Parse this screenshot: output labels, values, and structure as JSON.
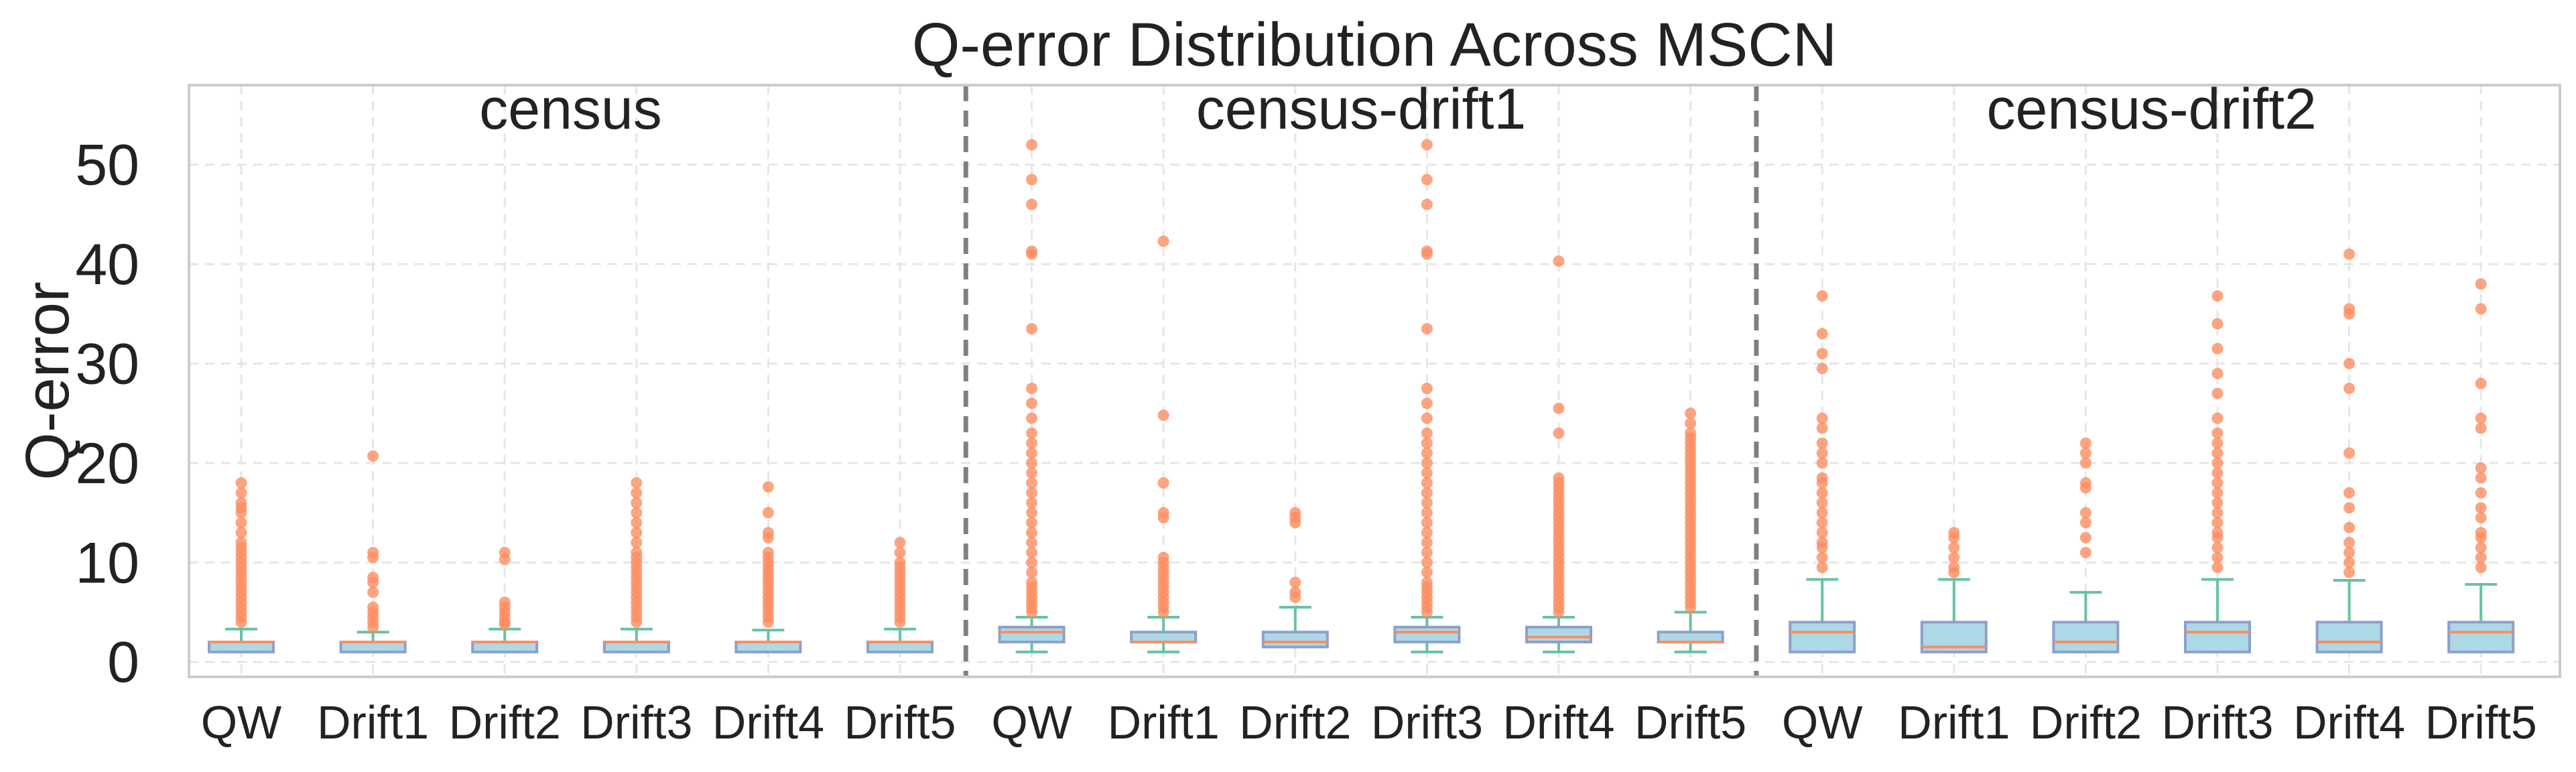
{
  "chart_data": {
    "type": "box",
    "title": "Q-error Distribution Across MSCN",
    "xlabel": "",
    "ylabel": "Q-error",
    "ylim": [
      -1.5,
      58
    ],
    "yticks": [
      0,
      10,
      20,
      30,
      40,
      50
    ],
    "grid": true,
    "categories": [
      "QW",
      "Drift1",
      "Drift2",
      "Drift3",
      "Drift4",
      "Drift5"
    ],
    "colors": {
      "box_fill": "#add8e6",
      "box_edge": "#8da0cb",
      "median": "#fc8d62",
      "whisker": "#66c2a5",
      "outlier": "#fc8d62",
      "separator": "#808080",
      "grid": "#e6e6e6"
    },
    "groups": [
      {
        "name": "census",
        "boxes": [
          {
            "label": "QW",
            "whislo": 1.0,
            "q1": 1.0,
            "med": 2.0,
            "q3": 2.0,
            "whishi": 3.3,
            "fliers": [
              4,
              4.5,
              5,
              5.5,
              6,
              6.5,
              7,
              7.5,
              8,
              8.5,
              9,
              9.5,
              10,
              10.5,
              11,
              11.5,
              12,
              13,
              14,
              15,
              15.5,
              16,
              17,
              18
            ]
          },
          {
            "label": "Drift1",
            "whislo": 1.0,
            "q1": 1.0,
            "med": 2.0,
            "q3": 2.0,
            "whishi": 3.0,
            "fliers": [
              3.5,
              4,
              4.5,
              5,
              5.5,
              7,
              8,
              8.5,
              10.5,
              11,
              20.7
            ]
          },
          {
            "label": "Drift2",
            "whislo": 1.0,
            "q1": 1.0,
            "med": 2.0,
            "q3": 2.0,
            "whishi": 3.3,
            "fliers": [
              3.8,
              4,
              4.5,
              5,
              5.5,
              6,
              10.3,
              11
            ]
          },
          {
            "label": "Drift3",
            "whislo": 1.0,
            "q1": 1.0,
            "med": 2.0,
            "q3": 2.0,
            "whishi": 3.3,
            "fliers": [
              4,
              4.5,
              5,
              5.5,
              6,
              6.5,
              7,
              7.5,
              8,
              8.5,
              9,
              9.5,
              10,
              10.5,
              11,
              12,
              13,
              14,
              15,
              16,
              17,
              18
            ]
          },
          {
            "label": "Drift4",
            "whislo": 1.0,
            "q1": 1.0,
            "med": 2.0,
            "q3": 2.0,
            "whishi": 3.2,
            "fliers": [
              4,
              4.5,
              5,
              5.5,
              6,
              6.5,
              7,
              7.5,
              8,
              8.5,
              9,
              9.5,
              10,
              10.5,
              11,
              12.5,
              13,
              15,
              17.6
            ]
          },
          {
            "label": "Drift5",
            "whislo": 1.0,
            "q1": 1.0,
            "med": 2.0,
            "q3": 2.0,
            "whishi": 3.3,
            "fliers": [
              4,
              4.5,
              5,
              5.5,
              6,
              6.5,
              7,
              7.5,
              8,
              8.5,
              9,
              9.5,
              10,
              11,
              12
            ]
          }
        ]
      },
      {
        "name": "census-drift1",
        "boxes": [
          {
            "label": "QW",
            "whislo": 1.0,
            "q1": 2.0,
            "med": 3.0,
            "q3": 3.5,
            "whishi": 4.5,
            "fliers": [
              5,
              5.5,
              6,
              6.5,
              7,
              7.5,
              8,
              9,
              10,
              11,
              12,
              13,
              14,
              15,
              16,
              17,
              18,
              19,
              20,
              21,
              22,
              23,
              24.5,
              26,
              27.5,
              33.5,
              41,
              41.3,
              46,
              48.5,
              52
            ]
          },
          {
            "label": "Drift1",
            "whislo": 1.0,
            "q1": 2.0,
            "med": 2.0,
            "q3": 3.0,
            "whishi": 4.5,
            "fliers": [
              5,
              5.5,
              6,
              6.5,
              7,
              7.5,
              8,
              8.5,
              9,
              9.5,
              10,
              10.5,
              14.5,
              15,
              18,
              24.8,
              42.3
            ]
          },
          {
            "label": "Drift2",
            "whislo": 1.5,
            "q1": 1.5,
            "med": 2.0,
            "q3": 3.0,
            "whishi": 5.5,
            "fliers": [
              6.5,
              7,
              8,
              14,
              14.5,
              15
            ]
          },
          {
            "label": "Drift3",
            "whislo": 1.0,
            "q1": 2.0,
            "med": 3.0,
            "q3": 3.5,
            "whishi": 4.5,
            "fliers": [
              5,
              5.5,
              6,
              6.5,
              7,
              7.5,
              8,
              9,
              10,
              11,
              12,
              13,
              14,
              15,
              16,
              17,
              18,
              19,
              20,
              21,
              22,
              23,
              24.5,
              26,
              27.5,
              33.5,
              41,
              41.3,
              46,
              48.5,
              52
            ]
          },
          {
            "label": "Drift4",
            "whislo": 1.0,
            "q1": 2.0,
            "med": 2.5,
            "q3": 3.5,
            "whishi": 4.5,
            "fliers": [
              5,
              5.5,
              6,
              6.5,
              7,
              7.5,
              8,
              8.5,
              9,
              9.5,
              10,
              10.5,
              11,
              11.5,
              12,
              12.5,
              13,
              13.5,
              14,
              14.5,
              15,
              15.5,
              16,
              16.5,
              17,
              17.5,
              18,
              18.5,
              23,
              25.5,
              40.3
            ]
          },
          {
            "label": "Drift5",
            "whislo": 1.0,
            "q1": 2.0,
            "med": 2.0,
            "q3": 3.0,
            "whishi": 5.0,
            "fliers": [
              5.5,
              6,
              6.5,
              7,
              7.5,
              8,
              8.5,
              9,
              9.5,
              10,
              10.5,
              11,
              11.5,
              12,
              12.5,
              13,
              13.5,
              14,
              14.5,
              15,
              15.5,
              16,
              16.5,
              17,
              17.5,
              18,
              18.5,
              19,
              19.5,
              20,
              20.5,
              21,
              21.5,
              22,
              22.5,
              23,
              24,
              25
            ]
          }
        ]
      },
      {
        "name": "census-drift2",
        "boxes": [
          {
            "label": "QW",
            "whislo": 1.0,
            "q1": 1.0,
            "med": 3.0,
            "q3": 4.0,
            "whishi": 8.3,
            "fliers": [
              9.5,
              10.5,
              11.5,
              12,
              13,
              14,
              15,
              16,
              17,
              18,
              18.5,
              20,
              21,
              22,
              23.5,
              24.5,
              29.5,
              31,
              33,
              36.8
            ]
          },
          {
            "label": "Drift1",
            "whislo": 1.0,
            "q1": 1.0,
            "med": 1.5,
            "q3": 4.0,
            "whishi": 8.3,
            "fliers": [
              9,
              9.5,
              10.5,
              11.5,
              12.5,
              13
            ]
          },
          {
            "label": "Drift2",
            "whislo": 1.0,
            "q1": 1.0,
            "med": 2.0,
            "q3": 4.0,
            "whishi": 7.0,
            "fliers": [
              11,
              12.5,
              14,
              15,
              17.5,
              18,
              20,
              21,
              22
            ]
          },
          {
            "label": "Drift3",
            "whislo": 1.0,
            "q1": 1.0,
            "med": 3.0,
            "q3": 4.0,
            "whishi": 8.3,
            "fliers": [
              9.5,
              10.5,
              11.5,
              12.5,
              13,
              14,
              15,
              16,
              17,
              18,
              19,
              20,
              21,
              22,
              23,
              24.5,
              27,
              29,
              31.5,
              34,
              36.8
            ]
          },
          {
            "label": "Drift4",
            "whislo": 1.0,
            "q1": 1.0,
            "med": 2.0,
            "q3": 4.0,
            "whishi": 8.2,
            "fliers": [
              9,
              10,
              11,
              12,
              13.5,
              15.5,
              17,
              21,
              27.5,
              30,
              35,
              35.5,
              41
            ]
          },
          {
            "label": "Drift5",
            "whislo": 1.0,
            "q1": 1.0,
            "med": 3.0,
            "q3": 4.0,
            "whishi": 7.8,
            "fliers": [
              9.5,
              10.5,
              11.5,
              12.5,
              13,
              14.5,
              15.5,
              17,
              18.5,
              19.5,
              23.5,
              24.5,
              28,
              35.5,
              38
            ]
          }
        ]
      }
    ]
  }
}
